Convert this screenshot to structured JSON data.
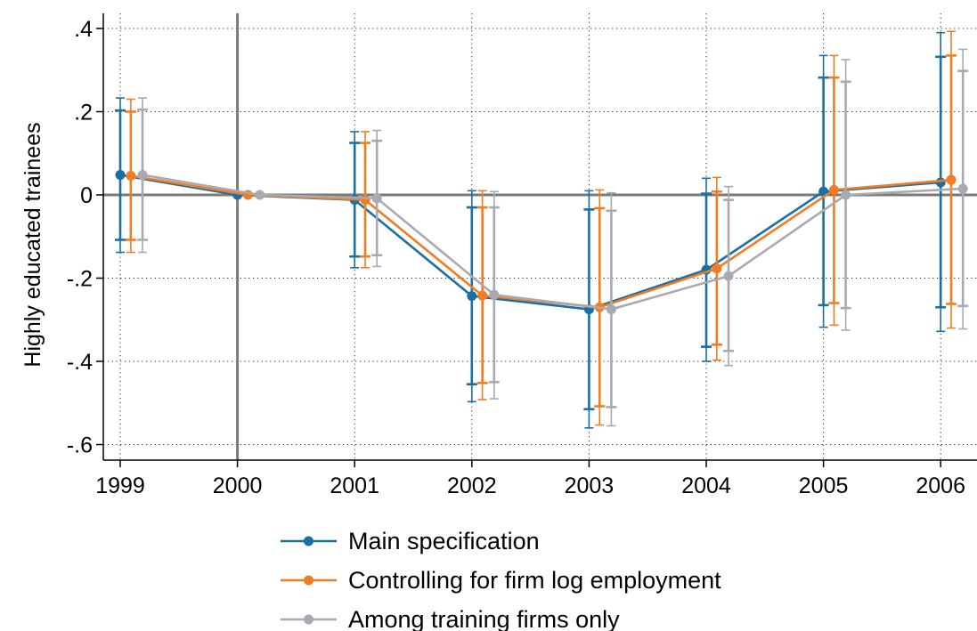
{
  "chart_data": {
    "type": "line",
    "ylabel": "Highly educated trainees",
    "xlabel": "",
    "x": [
      1999,
      2000,
      2001,
      2002,
      2003,
      2004,
      2005,
      2006
    ],
    "x_ticks": [
      "1999",
      "2000",
      "2001",
      "2002",
      "2003",
      "2004",
      "2005",
      "2006"
    ],
    "y_ticks": [
      ".4",
      ".2",
      "0",
      "-.2",
      "-.4",
      "-.6"
    ],
    "ylim": [
      -0.64,
      0.43
    ],
    "grid": true,
    "reference_lines": {
      "vertical_x": 2000,
      "horizontal_y": 0
    },
    "legend_position": "bottom",
    "series": [
      {
        "name": "Main specification",
        "color": "#1a6fa3",
        "offset": 0,
        "values": [
          0.048,
          0.0,
          -0.012,
          -0.243,
          -0.275,
          -0.18,
          0.008,
          0.03
        ],
        "ci90_lo": [
          -0.108,
          0.0,
          -0.148,
          -0.455,
          -0.515,
          -0.365,
          -0.265,
          -0.27
        ],
        "ci90_hi": [
          0.203,
          0.0,
          0.125,
          -0.03,
          -0.035,
          0.003,
          0.282,
          0.332
        ],
        "ci95_lo": [
          -0.138,
          0.0,
          -0.175,
          -0.497,
          -0.56,
          -0.4,
          -0.318,
          -0.328
        ],
        "ci95_hi": [
          0.233,
          0.0,
          0.152,
          0.01,
          0.01,
          0.04,
          0.335,
          0.39
        ]
      },
      {
        "name": "Controlling for firm log employment",
        "color": "#f27c22",
        "offset": 0.09,
        "values": [
          0.046,
          0.0,
          -0.012,
          -0.242,
          -0.27,
          -0.177,
          0.012,
          0.036
        ],
        "ci90_lo": [
          -0.108,
          0.0,
          -0.148,
          -0.452,
          -0.508,
          -0.36,
          -0.26,
          -0.262
        ],
        "ci90_hi": [
          0.2,
          0.0,
          0.125,
          -0.03,
          -0.032,
          0.008,
          0.282,
          0.335
        ],
        "ci95_lo": [
          -0.138,
          0.0,
          -0.175,
          -0.492,
          -0.553,
          -0.397,
          -0.313,
          -0.32
        ],
        "ci95_hi": [
          0.23,
          0.0,
          0.152,
          0.01,
          0.012,
          0.042,
          0.335,
          0.393
        ]
      },
      {
        "name": "Among training firms only",
        "color": "#a7aab0",
        "offset": 0.19,
        "values": [
          0.048,
          0.0,
          -0.008,
          -0.24,
          -0.275,
          -0.195,
          0.0,
          0.015
        ],
        "ci90_lo": [
          -0.108,
          0.0,
          -0.145,
          -0.45,
          -0.51,
          -0.375,
          -0.272,
          -0.267
        ],
        "ci90_hi": [
          0.205,
          0.0,
          0.13,
          -0.03,
          -0.038,
          -0.012,
          0.272,
          0.298
        ],
        "ci95_lo": [
          -0.138,
          0.0,
          -0.172,
          -0.49,
          -0.555,
          -0.41,
          -0.325,
          -0.322
        ],
        "ci95_hi": [
          0.233,
          0.0,
          0.155,
          0.008,
          0.005,
          0.02,
          0.325,
          0.35
        ]
      }
    ]
  }
}
